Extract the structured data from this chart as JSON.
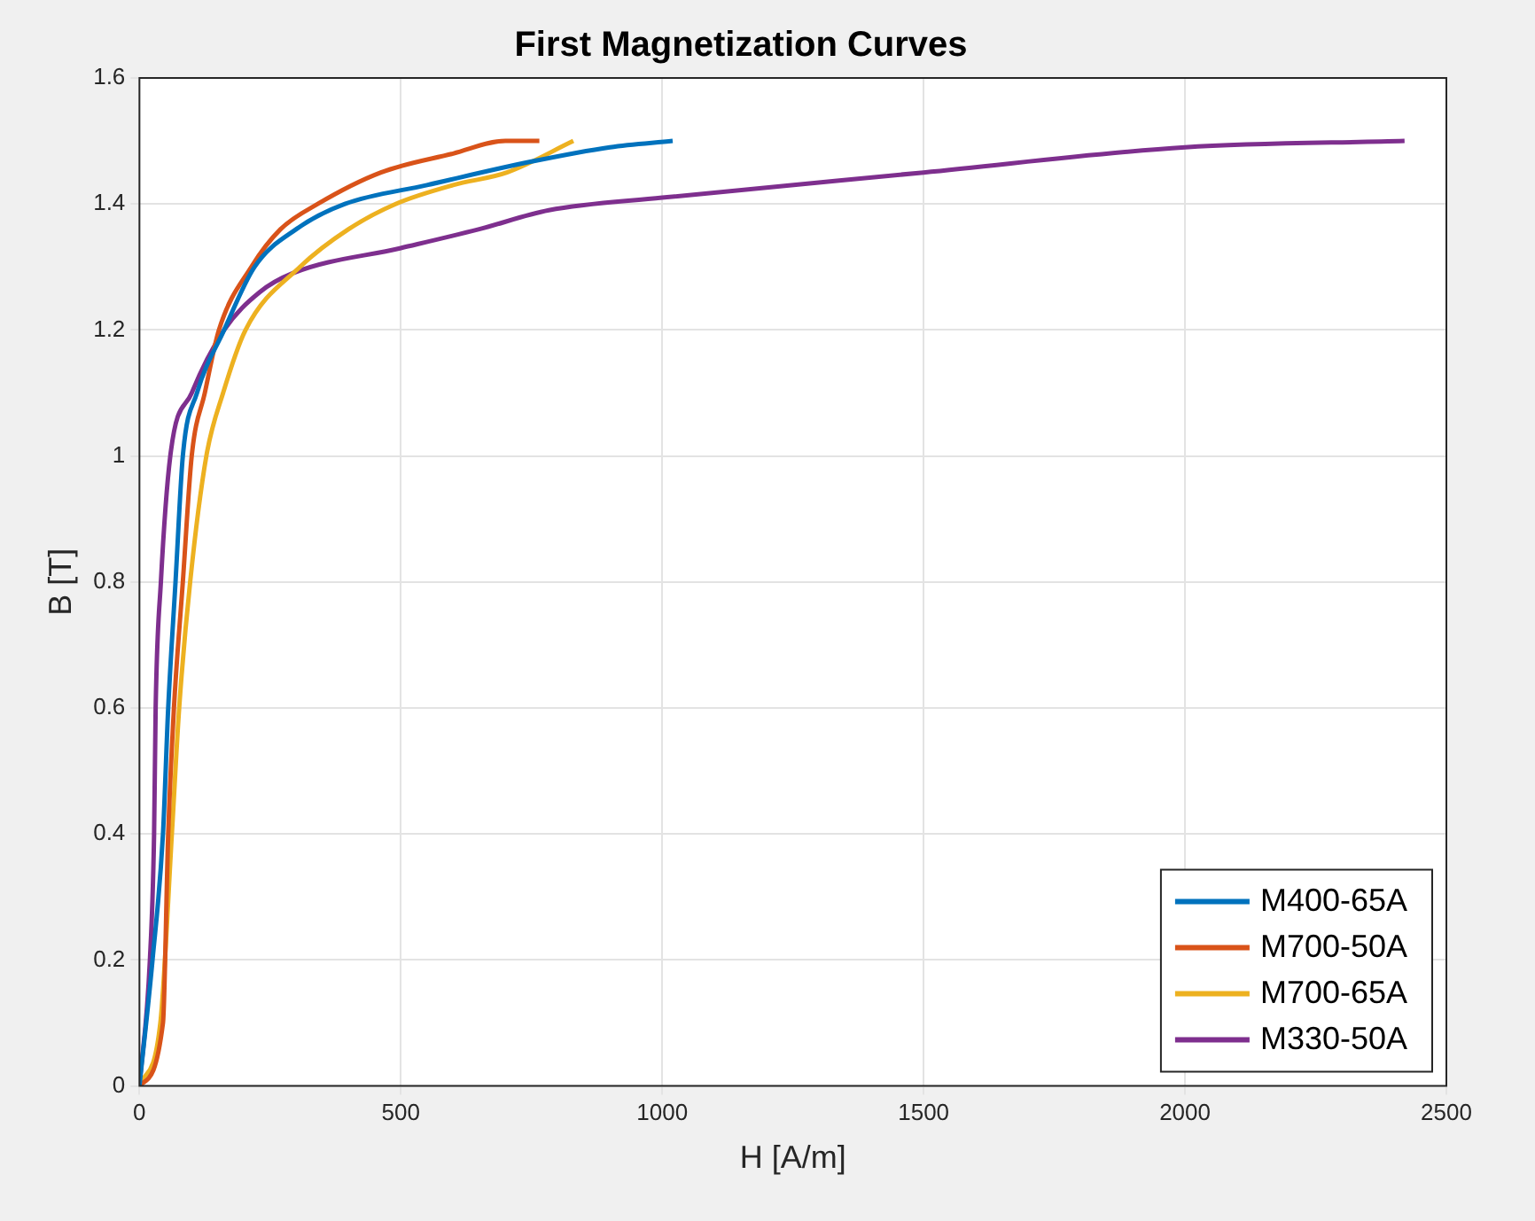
{
  "chart_data": {
    "type": "line",
    "title": "First Magnetization Curves",
    "xlabel": "H [A/m]",
    "ylabel": "B [T]",
    "xlim": [
      0,
      2500
    ],
    "xticks": [
      0,
      500,
      1000,
      1500,
      2000,
      2500
    ],
    "ylim": [
      0,
      1.6
    ],
    "yticks": [
      0,
      0.2,
      0.4,
      0.6,
      0.8,
      1,
      1.2,
      1.4,
      1.6
    ],
    "grid": true,
    "legend": "bottom right",
    "marker": "none",
    "line_style": "solid",
    "series": [
      {
        "name": "M400-65A",
        "color": "#0072bd",
        "x": [
          0,
          25,
          45,
          55,
          69,
          83,
          110,
          162,
          220,
          300,
          393,
          550,
          748,
          900,
          1020
        ],
        "values": [
          0,
          0.2,
          0.4,
          0.6,
          0.8,
          1,
          1.1,
          1.2,
          1.3,
          1.36,
          1.4,
          1.43,
          1.467,
          1.49,
          1.5
        ]
      },
      {
        "name": "M700-50A",
        "color": "#d95319",
        "x": [
          0,
          45,
          55,
          66,
          83,
          100,
          125,
          152,
          214,
          270,
          341,
          462,
          600,
          700,
          765
        ],
        "values": [
          0,
          0.1,
          0.4,
          0.6,
          0.8,
          1,
          1.1,
          1.2,
          1.3,
          1.36,
          1.4,
          1.45,
          1.48,
          1.5,
          1.5
        ]
      },
      {
        "name": "M700-65A",
        "color": "#edb120",
        "x": [
          0,
          40,
          62,
          76,
          97,
          128,
          160,
          203,
          307,
          400,
          490,
          600,
          703,
          830
        ],
        "values": [
          0,
          0.1,
          0.4,
          0.6,
          0.8,
          1,
          1.1,
          1.2,
          1.3,
          1.36,
          1.4,
          1.43,
          1.45,
          1.5
        ]
      },
      {
        "name": "M330-50A",
        "color": "#7e2f8e",
        "x": [
          0,
          20,
          28,
          31,
          41,
          59,
          100,
          162,
          230,
          293,
          500,
          650,
          783,
          1000,
          1500,
          2000,
          2420
        ],
        "values": [
          0,
          0.2,
          0.4,
          0.6,
          0.8,
          1,
          1.1,
          1.2,
          1.26,
          1.29,
          1.33,
          1.36,
          1.39,
          1.41,
          1.45,
          1.49,
          1.5
        ]
      }
    ]
  }
}
